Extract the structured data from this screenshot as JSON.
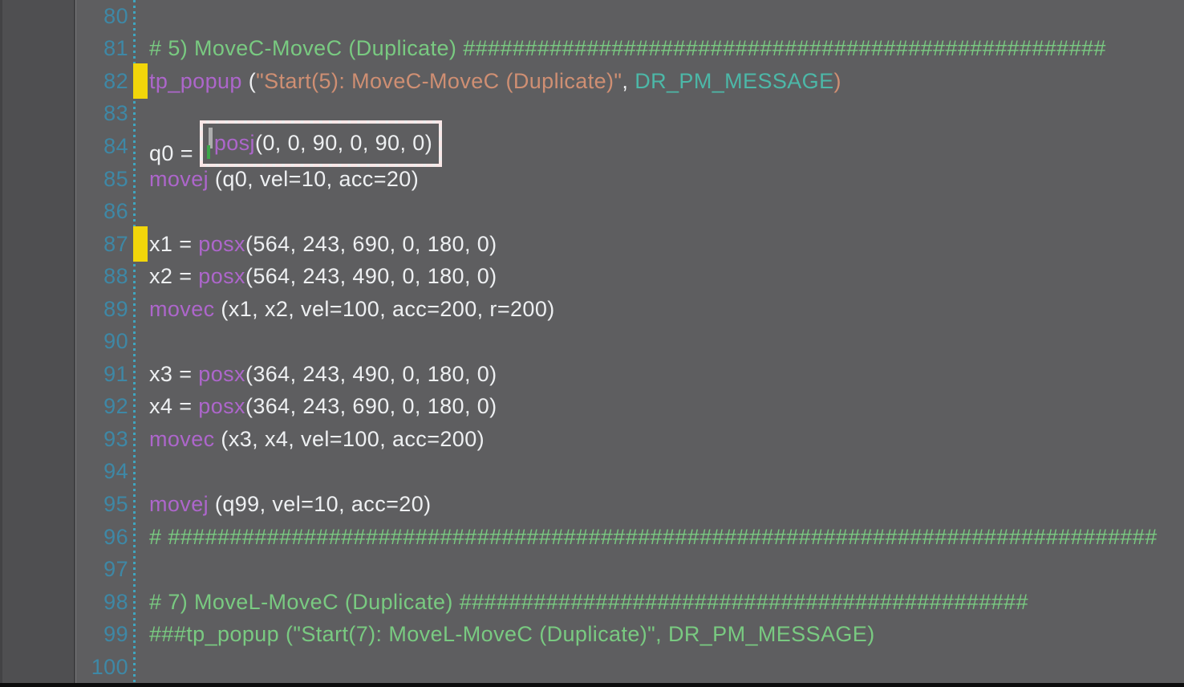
{
  "app": {
    "kind": "code-editor",
    "language": "robot-script",
    "visible_line_range": [
      80,
      100
    ]
  },
  "colors": {
    "editor_background": "#5e5e60",
    "side_panel": "#4f4f51",
    "line_number": "#3e88a6",
    "gutter_guide": "#3fa5bf",
    "comment_green": "#79ca81",
    "keyword_purple": "#ad66cb",
    "string_salmon": "#cf8f73",
    "constant_teal": "#4cb8a8",
    "plain_text": "#eef0f2",
    "bookmark_yellow": "#f2d60a",
    "search_box_red": "#e81212"
  },
  "search_match": {
    "line": 84,
    "matched_text": "posj(0, 0, 90, 0, 90, 0)"
  },
  "bookmarked_lines": [
    82,
    87
  ],
  "editor": {
    "lines": [
      {
        "num": 80,
        "tokens": []
      },
      {
        "num": 81,
        "tokens": [
          {
            "t": "# 5) MoveC-MoveC (Duplicate) ####################################################",
            "c": "comment"
          }
        ]
      },
      {
        "num": 82,
        "bookmark": true,
        "tokens": [
          {
            "t": "tp_popup",
            "c": "keyword"
          },
          {
            "t": " (",
            "c": "plain"
          },
          {
            "t": "\"Start(5): MoveC-MoveC (Duplicate)\"",
            "c": "string"
          },
          {
            "t": ", ",
            "c": "plain"
          },
          {
            "t": "DR_PM_MESSAGE",
            "c": "constant"
          },
          {
            "t": ")",
            "c": "string"
          }
        ]
      },
      {
        "num": 83,
        "tokens": []
      },
      {
        "num": 84,
        "tokens": [
          {
            "t": "q0 = ",
            "c": "plain"
          },
          {
            "box": [
              {
                "t": "posj",
                "c": "keyword"
              },
              {
                "t": "(0, 0, 90, 0, 90, 0)",
                "c": "plain"
              }
            ]
          }
        ]
      },
      {
        "num": 85,
        "tokens": [
          {
            "t": "movej",
            "c": "keyword"
          },
          {
            "t": " (q0, vel=10, acc=20)",
            "c": "plain"
          }
        ]
      },
      {
        "num": 86,
        "tokens": []
      },
      {
        "num": 87,
        "bookmark": true,
        "tokens": [
          {
            "t": "x1 = ",
            "c": "plain"
          },
          {
            "t": "posx",
            "c": "keyword"
          },
          {
            "t": "(564, 243, 690, 0, 180, 0)",
            "c": "plain"
          }
        ]
      },
      {
        "num": 88,
        "tokens": [
          {
            "t": "x2 = ",
            "c": "plain"
          },
          {
            "t": "posx",
            "c": "keyword"
          },
          {
            "t": "(564, 243, 490, 0, 180, 0)",
            "c": "plain"
          }
        ]
      },
      {
        "num": 89,
        "tokens": [
          {
            "t": "movec",
            "c": "keyword"
          },
          {
            "t": " (x1, x2, vel=100, acc=200, r=200)",
            "c": "plain"
          }
        ]
      },
      {
        "num": 90,
        "tokens": []
      },
      {
        "num": 91,
        "tokens": [
          {
            "t": "x3 = ",
            "c": "plain"
          },
          {
            "t": "posx",
            "c": "keyword"
          },
          {
            "t": "(364, 243, 490, 0, 180, 0)",
            "c": "plain"
          }
        ]
      },
      {
        "num": 92,
        "tokens": [
          {
            "t": "x4 = ",
            "c": "plain"
          },
          {
            "t": "posx",
            "c": "keyword"
          },
          {
            "t": "(364, 243, 690, 0, 180, 0)",
            "c": "plain"
          }
        ]
      },
      {
        "num": 93,
        "tokens": [
          {
            "t": "movec",
            "c": "keyword"
          },
          {
            "t": " (x3, x4, vel=100, acc=200)",
            "c": "plain"
          }
        ]
      },
      {
        "num": 94,
        "tokens": []
      },
      {
        "num": 95,
        "tokens": [
          {
            "t": "movej",
            "c": "keyword"
          },
          {
            "t": " (q99, vel=10, acc=20)",
            "c": "plain"
          }
        ]
      },
      {
        "num": 96,
        "tokens": [
          {
            "t": "# ################################################################################",
            "c": "comment"
          }
        ]
      },
      {
        "num": 97,
        "tokens": []
      },
      {
        "num": 98,
        "tokens": [
          {
            "t": "# 7) MoveL-MoveC (Duplicate) ##############################################",
            "c": "comment"
          }
        ]
      },
      {
        "num": 99,
        "tokens": [
          {
            "t": "###tp_popup (\"Start(7): MoveL-MoveC (Duplicate)\", DR_PM_MESSAGE)",
            "c": "comment"
          }
        ]
      },
      {
        "num": 100,
        "tokens": []
      }
    ]
  }
}
